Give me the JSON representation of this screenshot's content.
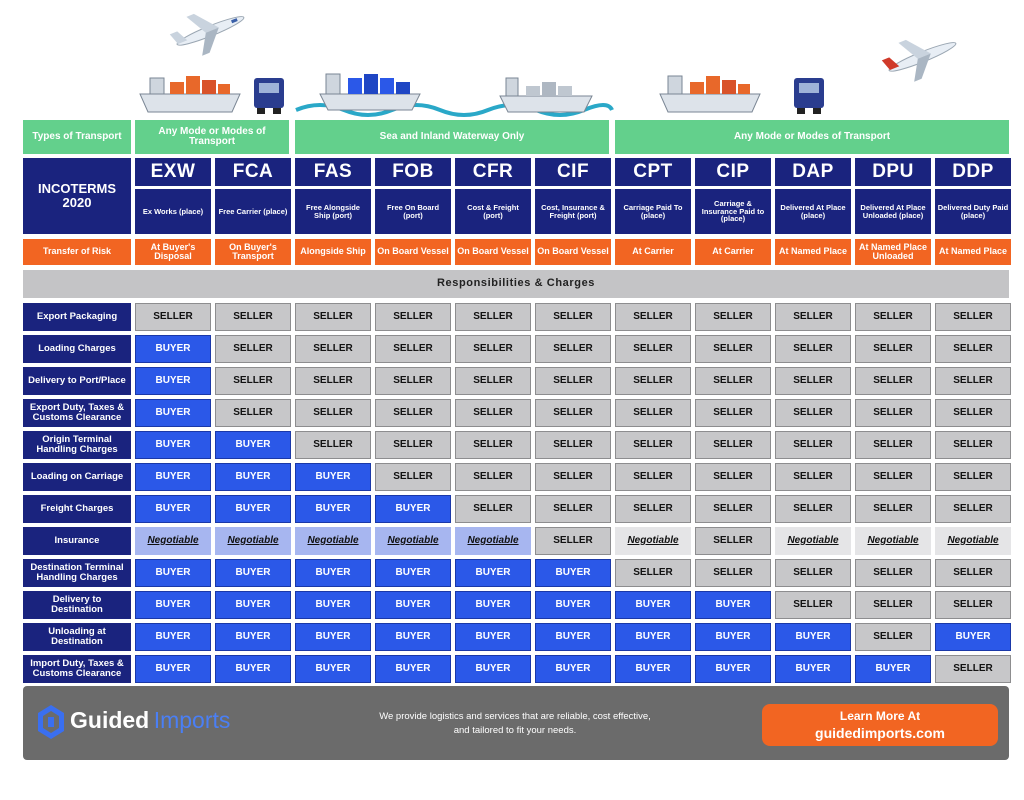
{
  "transport": [
    {
      "label": "Types of Transport"
    },
    {
      "label": "Any Mode or Modes of Transport"
    },
    {
      "label": "Sea and Inland Waterway Only"
    },
    {
      "label": "Any Mode or Modes of Transport"
    }
  ],
  "incoterms_title": "INCOTERMS 2020",
  "terms": [
    {
      "code": "EXW",
      "name": "Ex Works (place)",
      "risk": "At Buyer's Disposal"
    },
    {
      "code": "FCA",
      "name": "Free Carrier (place)",
      "risk": "On Buyer's Transport"
    },
    {
      "code": "FAS",
      "name": "Free Alongside Ship (port)",
      "risk": "Alongside Ship"
    },
    {
      "code": "FOB",
      "name": "Free On Board (port)",
      "risk": "On Board Vessel"
    },
    {
      "code": "CFR",
      "name": "Cost & Freight (port)",
      "risk": "On Board Vessel"
    },
    {
      "code": "CIF",
      "name": "Cost, Insurance & Freight (port)",
      "risk": "On Board Vessel"
    },
    {
      "code": "CPT",
      "name": "Carriage Paid To (place)",
      "risk": "At Carrier"
    },
    {
      "code": "CIP",
      "name": "Carriage & Insurance Paid to (place)",
      "risk": "At Carrier"
    },
    {
      "code": "DAP",
      "name": "Delivered At Place (place)",
      "risk": "At Named Place"
    },
    {
      "code": "DPU",
      "name": "Delivered At Place Unloaded (place)",
      "risk": "At Named Place Unloaded"
    },
    {
      "code": "DDP",
      "name": "Delivered Duty Paid (place)",
      "risk": "At Named Place"
    }
  ],
  "risk_label": "Transfer of Risk",
  "responsibilities_title": "Responsibilities & Charges",
  "rows": [
    {
      "label": "Export Packaging",
      "cells": [
        "SELLER",
        "SELLER",
        "SELLER",
        "SELLER",
        "SELLER",
        "SELLER",
        "SELLER",
        "SELLER",
        "SELLER",
        "SELLER",
        "SELLER"
      ]
    },
    {
      "label": "Loading Charges",
      "cells": [
        "BUYER",
        "SELLER",
        "SELLER",
        "SELLER",
        "SELLER",
        "SELLER",
        "SELLER",
        "SELLER",
        "SELLER",
        "SELLER",
        "SELLER"
      ]
    },
    {
      "label": "Delivery to Port/Place",
      "cells": [
        "BUYER",
        "SELLER",
        "SELLER",
        "SELLER",
        "SELLER",
        "SELLER",
        "SELLER",
        "SELLER",
        "SELLER",
        "SELLER",
        "SELLER"
      ]
    },
    {
      "label": "Export Duty, Taxes & Customs Clearance",
      "cells": [
        "BUYER",
        "SELLER",
        "SELLER",
        "SELLER",
        "SELLER",
        "SELLER",
        "SELLER",
        "SELLER",
        "SELLER",
        "SELLER",
        "SELLER"
      ]
    },
    {
      "label": "Origin Terminal Handling Charges",
      "cells": [
        "BUYER",
        "BUYER",
        "SELLER",
        "SELLER",
        "SELLER",
        "SELLER",
        "SELLER",
        "SELLER",
        "SELLER",
        "SELLER",
        "SELLER"
      ]
    },
    {
      "label": "Loading on Carriage",
      "cells": [
        "BUYER",
        "BUYER",
        "BUYER",
        "SELLER",
        "SELLER",
        "SELLER",
        "SELLER",
        "SELLER",
        "SELLER",
        "SELLER",
        "SELLER"
      ]
    },
    {
      "label": "Freight Charges",
      "cells": [
        "BUYER",
        "BUYER",
        "BUYER",
        "BUYER",
        "SELLER",
        "SELLER",
        "SELLER",
        "SELLER",
        "SELLER",
        "SELLER",
        "SELLER"
      ]
    },
    {
      "label": "Insurance",
      "cells": [
        "Negotiable",
        "Negotiable",
        "Negotiable",
        "Negotiable",
        "Negotiable",
        "SELLER",
        "Negotiable",
        "SELLER",
        "Negotiable",
        "Negotiable",
        "Negotiable"
      ]
    },
    {
      "label": "Destination Terminal Handling Charges",
      "cells": [
        "BUYER",
        "BUYER",
        "BUYER",
        "BUYER",
        "BUYER",
        "BUYER",
        "SELLER",
        "SELLER",
        "SELLER",
        "SELLER",
        "SELLER"
      ]
    },
    {
      "label": "Delivery to Destination",
      "cells": [
        "BUYER",
        "BUYER",
        "BUYER",
        "BUYER",
        "BUYER",
        "BUYER",
        "BUYER",
        "BUYER",
        "SELLER",
        "SELLER",
        "SELLER"
      ]
    },
    {
      "label": "Unloading at Destination",
      "cells": [
        "BUYER",
        "BUYER",
        "BUYER",
        "BUYER",
        "BUYER",
        "BUYER",
        "BUYER",
        "BUYER",
        "BUYER",
        "SELLER",
        "BUYER"
      ]
    },
    {
      "label": "Import Duty, Taxes & Customs Clearance",
      "cells": [
        "BUYER",
        "BUYER",
        "BUYER",
        "BUYER",
        "BUYER",
        "BUYER",
        "BUYER",
        "BUYER",
        "BUYER",
        "BUYER",
        "SELLER"
      ]
    }
  ],
  "footer": {
    "logo_bold": "Guided",
    "logo_light": "Imports",
    "tagline_1": "We provide logistics and services that are reliable, cost effective,",
    "tagline_2": "and tailored to fit your needs.",
    "cta_1": "Learn More At",
    "cta_2": "guidedimports.com"
  },
  "colors": {
    "navy": "#1a237e",
    "green": "#63d08c",
    "orange": "#f26522",
    "buyer": "#2b58e8",
    "seller": "#c7c7c9"
  },
  "icons": [
    "airplane-icon",
    "container-ship-icon",
    "truck-icon",
    "water-wave-icon",
    "guided-imports-logo-icon"
  ]
}
